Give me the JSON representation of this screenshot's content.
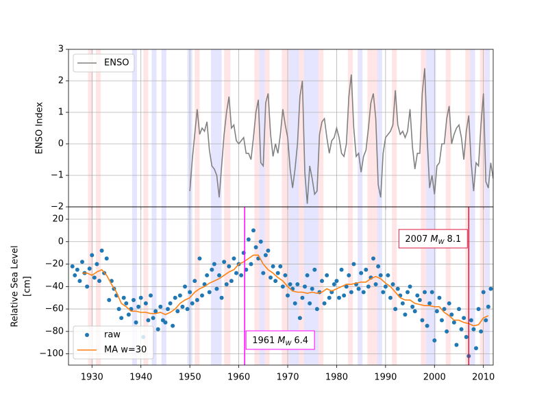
{
  "shared_x": {
    "xlim": [
      1925.2,
      2012
    ],
    "xticks": [
      1930,
      1940,
      1950,
      1960,
      1970,
      1980,
      1990,
      2000,
      2010
    ]
  },
  "enso_phases": {
    "el_nino_color": "#ff0000",
    "la_nina_color": "#0000ff",
    "el_nino": [
      [
        1929.2,
        1930.2
      ],
      [
        1930.8,
        1931.8
      ],
      [
        1940.5,
        1941.5
      ],
      [
        1951,
        1952
      ],
      [
        1957,
        1958.3
      ],
      [
        1963.2,
        1964.2
      ],
      [
        1965.3,
        1966.3
      ],
      [
        1968.8,
        1970.2
      ],
      [
        1972.3,
        1973.3
      ],
      [
        1976.3,
        1977.3
      ],
      [
        1982.3,
        1983.3
      ],
      [
        1986.3,
        1988.3
      ],
      [
        1991.3,
        1992.3
      ],
      [
        1997.2,
        1998.3
      ],
      [
        2002.3,
        2003.3
      ],
      [
        2006.3,
        2007.3
      ],
      [
        2009.3,
        2010.3
      ]
    ],
    "la_nina": [
      [
        1938.2,
        1939.2
      ],
      [
        1942.2,
        1943.2
      ],
      [
        1944.2,
        1945.2
      ],
      [
        1949.5,
        1950.5
      ],
      [
        1954.3,
        1956.5
      ],
      [
        1964.2,
        1965.3
      ],
      [
        1970.2,
        1972.3
      ],
      [
        1973.3,
        1976.3
      ],
      [
        1984.3,
        1985.3
      ],
      [
        1988.3,
        1989.3
      ],
      [
        1998.3,
        2000.3
      ],
      [
        2007.3,
        2008.3
      ],
      [
        2010.3,
        2011.3
      ]
    ]
  },
  "chart_data": [
    {
      "type": "line",
      "ylabel": "ENSO Index",
      "ylim": [
        -2,
        3
      ],
      "yticks": [
        {
          "value": -2,
          "label": "−2"
        },
        {
          "value": -1,
          "label": "−1"
        },
        0,
        1,
        2,
        3
      ],
      "grid": true,
      "legend": "upper left",
      "series": [
        {
          "name": "ENSO",
          "color": "#808080",
          "x": [
            1950,
            1950.5,
            1951,
            1951.5,
            1952,
            1952.5,
            1953,
            1953.5,
            1954,
            1954.5,
            1955,
            1955.5,
            1956,
            1956.5,
            1957,
            1957.5,
            1958,
            1958.5,
            1959,
            1959.5,
            1960,
            1960.5,
            1961,
            1961.5,
            1962,
            1962.5,
            1963,
            1963.5,
            1964,
            1964.5,
            1965,
            1965.5,
            1966,
            1966.5,
            1967,
            1967.5,
            1968,
            1968.5,
            1969,
            1969.5,
            1970,
            1970.5,
            1971,
            1971.5,
            1972,
            1972.5,
            1973,
            1973.5,
            1974,
            1974.5,
            1975,
            1975.5,
            1976,
            1976.5,
            1977,
            1977.5,
            1978,
            1978.5,
            1979,
            1979.5,
            1980,
            1980.5,
            1981,
            1981.5,
            1982,
            1982.5,
            1983,
            1983.5,
            1984,
            1984.5,
            1985,
            1985.5,
            1986,
            1986.5,
            1987,
            1987.5,
            1988,
            1988.5,
            1989,
            1989.5,
            1990,
            1990.5,
            1991,
            1991.5,
            1992,
            1992.5,
            1993,
            1993.5,
            1994,
            1994.5,
            1995,
            1995.5,
            1996,
            1996.5,
            1997,
            1997.5,
            1998,
            1998.5,
            1999,
            1999.5,
            2000,
            2000.5,
            2001,
            2001.5,
            2002,
            2002.5,
            2003,
            2003.5,
            2004,
            2004.5,
            2005,
            2005.5,
            2006,
            2006.5,
            2007,
            2007.5,
            2008,
            2008.5,
            2009,
            2009.5,
            2010,
            2010.5,
            2011,
            2011.5,
            2012
          ],
          "values": [
            -1.5,
            -0.5,
            0.3,
            1.1,
            0.3,
            0.5,
            0.4,
            0.7,
            -0.2,
            -0.7,
            -0.8,
            -1.0,
            -1.7,
            -0.7,
            0.3,
            1.0,
            1.5,
            0.5,
            0.6,
            0.1,
            0,
            0.1,
            0.2,
            -0.3,
            -0.3,
            -0.5,
            0.2,
            1.0,
            1.4,
            -0.6,
            -0.7,
            1.3,
            1.6,
            0.3,
            -0.4,
            0,
            -0.3,
            0.3,
            1.1,
            0.6,
            0.2,
            -0.8,
            -1.4,
            -0.8,
            0,
            1.5,
            2.0,
            -0.9,
            -1.9,
            -0.7,
            -1.1,
            -1.6,
            -1.5,
            0.3,
            0.7,
            0.8,
            0.2,
            -0.3,
            0.1,
            0.2,
            0.5,
            0.2,
            -0.3,
            -0.4,
            0,
            1.5,
            2.2,
            0.5,
            -0.4,
            -0.3,
            -0.9,
            -0.4,
            -0.2,
            0.5,
            1.3,
            1.6,
            0.8,
            -1.3,
            -1.7,
            -0.3,
            0.2,
            0.3,
            0.4,
            0.6,
            1.7,
            0.6,
            0.3,
            0.4,
            0.2,
            0.4,
            1.1,
            -0.1,
            -0.8,
            -0.3,
            -0.3,
            1.6,
            2.4,
            0.2,
            -1.4,
            -1.0,
            -1.6,
            -0.7,
            -0.6,
            0,
            0,
            0.8,
            1.2,
            0,
            0.3,
            0.5,
            0.6,
            0.2,
            -0.5,
            0.4,
            0.9,
            -0.6,
            -1.5,
            -0.6,
            -0.7,
            0.6,
            1.6,
            -1.2,
            -1.4,
            -0.6,
            -1.1
          ]
        }
      ]
    },
    {
      "type": "scatter",
      "ylabel": [
        "Relative Sea Level",
        "[cm]"
      ],
      "ylim": [
        -110,
        31
      ],
      "yticks": [
        {
          "value": -100,
          "label": "−100"
        },
        {
          "value": -80,
          "label": "−80"
        },
        {
          "value": -60,
          "label": "−60"
        },
        {
          "value": -40,
          "label": "−40"
        },
        {
          "value": -20,
          "label": "−20"
        },
        0,
        20
      ],
      "grid": true,
      "legend": "lower left",
      "series": [
        {
          "name": "raw",
          "kind": "scatter",
          "color": "#1f77b4",
          "x": [
            1926,
            1926.5,
            1927,
            1927.5,
            1928,
            1928.5,
            1929,
            1929.5,
            1930,
            1930.5,
            1931,
            1931.5,
            1932,
            1932.5,
            1933,
            1933.5,
            1934,
            1934.5,
            1935,
            1935.5,
            1936,
            1936.5,
            1937,
            1937.5,
            1938,
            1938.5,
            1939,
            1939.5,
            1940,
            1940.5,
            1941,
            1941.5,
            1942,
            1942.5,
            1943,
            1943.5,
            1944,
            1944.5,
            1945,
            1945.5,
            1946,
            1946.5,
            1947,
            1947.5,
            1948,
            1948.5,
            1949,
            1949.5,
            1950,
            1950.5,
            1951,
            1951.5,
            1952,
            1952.5,
            1953,
            1953.5,
            1954,
            1954.5,
            1955,
            1955.5,
            1956,
            1956.5,
            1957,
            1957.5,
            1958,
            1958.5,
            1959,
            1959.5,
            1960,
            1960.5,
            1961,
            1961.5,
            1962,
            1962.5,
            1963,
            1963.5,
            1964,
            1964.5,
            1965,
            1965.5,
            1966,
            1966.5,
            1967,
            1967.5,
            1968,
            1968.5,
            1969,
            1969.5,
            1970,
            1970.5,
            1971,
            1971.5,
            1972,
            1972.5,
            1973,
            1973.5,
            1974,
            1974.5,
            1975,
            1975.5,
            1976,
            1976.5,
            1977,
            1977.5,
            1978,
            1978.5,
            1979,
            1979.5,
            1980,
            1980.5,
            1981,
            1981.5,
            1982,
            1982.5,
            1983,
            1983.5,
            1984,
            1984.5,
            1985,
            1985.5,
            1986,
            1986.5,
            1987,
            1987.5,
            1988,
            1988.5,
            1989,
            1989.5,
            1990,
            1990.5,
            1991,
            1991.5,
            1992,
            1992.5,
            1993,
            1993.5,
            1994,
            1994.5,
            1995,
            1995.5,
            1996,
            1996.5,
            1997,
            1997.5,
            1998,
            1998.5,
            1999,
            1999.5,
            2000,
            2000.5,
            2001,
            2001.5,
            2002,
            2002.5,
            2003,
            2003.5,
            2004,
            2004.5,
            2005,
            2005.5,
            2006,
            2006.5,
            2007,
            2007.5,
            2008,
            2008.5,
            2009,
            2009.5,
            2010,
            2010.5,
            2011,
            2011.5
          ],
          "values": [
            -22,
            -30,
            -25,
            -35,
            -18,
            -28,
            -40,
            -24,
            -12,
            -32,
            -20,
            -35,
            -8,
            -28,
            -15,
            -52,
            -35,
            -42,
            -48,
            -60,
            -68,
            -50,
            -55,
            -65,
            -60,
            -52,
            -72,
            -58,
            -50,
            -85,
            -55,
            -70,
            -48,
            -68,
            -62,
            -78,
            -58,
            -70,
            -72,
            -60,
            -55,
            -75,
            -50,
            -62,
            -48,
            -58,
            -40,
            -60,
            -45,
            -55,
            -35,
            -52,
            -15,
            -48,
            -38,
            -30,
            -45,
            -25,
            -20,
            -42,
            -30,
            -50,
            -18,
            -38,
            -22,
            -35,
            -15,
            -28,
            -20,
            -30,
            -10,
            -25,
            2,
            -20,
            10,
            -5,
            -15,
            0,
            -28,
            -12,
            -8,
            -32,
            -22,
            -35,
            -28,
            -22,
            -40,
            -30,
            -48,
            -38,
            -42,
            -55,
            -38,
            -68,
            -50,
            -40,
            -30,
            -55,
            -42,
            -25,
            -60,
            -45,
            -35,
            -55,
            -30,
            -50,
            -45,
            -38,
            -35,
            -50,
            -25,
            -48,
            -40,
            -30,
            -45,
            -20,
            -38,
            -42,
            -28,
            -45,
            -25,
            -40,
            -32,
            -15,
            -38,
            -22,
            -30,
            -45,
            -40,
            -30,
            -50,
            -38,
            -60,
            -42,
            -48,
            -55,
            -65,
            -45,
            -40,
            -58,
            -62,
            -48,
            -52,
            -70,
            -45,
            -75,
            -55,
            -45,
            -88,
            -62,
            -50,
            -70,
            -60,
            -80,
            -55,
            -65,
            -72,
            -92,
            -60,
            -78,
            -68,
            -85,
            -102,
            -70,
            -78,
            -95,
            -60,
            -80,
            -45,
            -70,
            -58,
            -42
          ]
        },
        {
          "name": "MA w=30",
          "kind": "line",
          "color": "#ff7f0e",
          "x": [
            1928,
            1929,
            1930,
            1931,
            1932,
            1933,
            1934,
            1935,
            1936,
            1937,
            1938,
            1939,
            1940,
            1941,
            1942,
            1943,
            1944,
            1945,
            1946,
            1947,
            1948,
            1949,
            1950,
            1951,
            1952,
            1953,
            1954,
            1955,
            1956,
            1957,
            1958,
            1959,
            1960,
            1961,
            1962,
            1963,
            1964,
            1965,
            1966,
            1967,
            1968,
            1969,
            1970,
            1971,
            1972,
            1973,
            1974,
            1975,
            1976,
            1977,
            1978,
            1979,
            1980,
            1981,
            1982,
            1983,
            1984,
            1985,
            1986,
            1987,
            1988,
            1989,
            1990,
            1991,
            1992,
            1993,
            1994,
            1995,
            1996,
            1997,
            1998,
            1999,
            2000,
            2001,
            2002,
            2003,
            2004,
            2005,
            2006,
            2007,
            2008,
            2009,
            2010,
            2011
          ],
          "values": [
            -28,
            -28,
            -30,
            -27,
            -25,
            -30,
            -38,
            -45,
            -55,
            -58,
            -62,
            -62,
            -63,
            -63,
            -64,
            -64,
            -63,
            -65,
            -63,
            -60,
            -55,
            -52,
            -50,
            -45,
            -42,
            -40,
            -37,
            -35,
            -33,
            -30,
            -27,
            -25,
            -20,
            -18,
            -15,
            -12,
            -12,
            -20,
            -25,
            -28,
            -32,
            -35,
            -40,
            -44,
            -45,
            -45,
            -46,
            -45,
            -46,
            -45,
            -42,
            -44,
            -42,
            -40,
            -38,
            -38,
            -37,
            -36,
            -36,
            -33,
            -31,
            -33,
            -37,
            -40,
            -45,
            -50,
            -52,
            -52,
            -55,
            -56,
            -57,
            -57,
            -58,
            -58,
            -63,
            -66,
            -70,
            -70,
            -72,
            -73,
            -75,
            -74,
            -68,
            -66
          ]
        }
      ],
      "annotations": [
        {
          "x": 1961.2,
          "color": "#ff00ff",
          "year": "1961",
          "symbol": "M",
          "subscript": "W",
          "magnitude": "6.4"
        },
        {
          "x": 2007.0,
          "color": "#dc143c",
          "year": "2007",
          "symbol": "M",
          "subscript": "W",
          "magnitude": "8.1"
        }
      ]
    }
  ]
}
